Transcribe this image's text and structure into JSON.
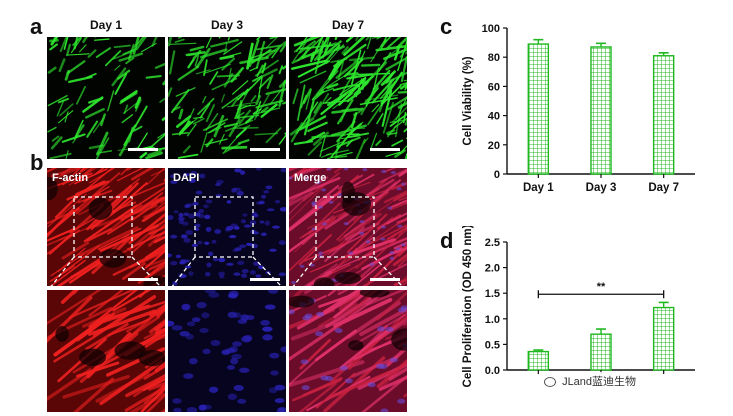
{
  "panel_labels": {
    "a": "a",
    "b": "b",
    "c": "c",
    "d": "d"
  },
  "panel_a": {
    "columns": [
      "Day 1",
      "Day 3",
      "Day 7"
    ],
    "stain_color": "#2ee82e",
    "density": [
      0.35,
      0.6,
      1.0
    ]
  },
  "panel_b": {
    "channels": [
      "F-actin",
      "DAPI",
      "Merge"
    ],
    "colors": {
      "actin": "#e01818",
      "dapi": "#2a22b8",
      "merge": "#d0245a"
    }
  },
  "chart_data": [
    {
      "type": "bar",
      "panel": "c",
      "categories": [
        "Day 1",
        "Day 3",
        "Day 7"
      ],
      "values": [
        89,
        87,
        81
      ],
      "errors": [
        3,
        2.5,
        2
      ],
      "ylabel": "Cell Viability (%)",
      "ylim": [
        0,
        100
      ],
      "yticks": [
        0,
        20,
        40,
        60,
        80,
        100
      ],
      "bar_color": "#1fb81f",
      "grid": false
    },
    {
      "type": "bar",
      "panel": "d",
      "categories": [
        "",
        "",
        ""
      ],
      "values": [
        0.36,
        0.7,
        1.22
      ],
      "errors": [
        0.03,
        0.1,
        0.1
      ],
      "ylabel": "Cell Proliferation (OD 450 nm)",
      "ylim": [
        0,
        2.5
      ],
      "yticks": [
        "0.0",
        "0.5",
        "1.0",
        "1.5",
        "2.0",
        "2.5"
      ],
      "bar_color": "#1fb81f",
      "significance": "**",
      "grid": false
    }
  ],
  "watermark": {
    "text": "JLand蓝迪生物"
  }
}
